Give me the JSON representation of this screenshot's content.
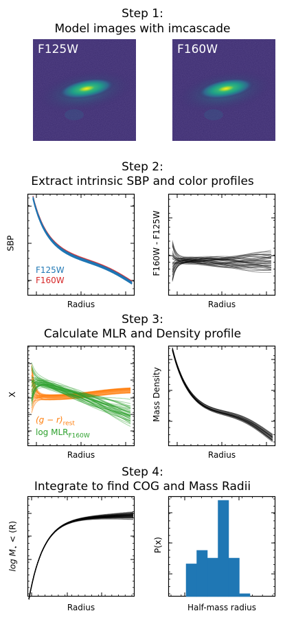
{
  "steps": [
    {
      "title_line1": "Step 1:",
      "title_line2": "Model images with imcascade"
    },
    {
      "title_line1": "Step 2:",
      "title_line2": "Extract intrinsic SBP and color profiles"
    },
    {
      "title_line1": "Step 3:",
      "title_line2": "Calculate MLR and Density profile"
    },
    {
      "title_line1": "Step 4:",
      "title_line2": "Integrate to find COG and Mass Radii"
    }
  ],
  "images": [
    {
      "label": "F125W"
    },
    {
      "label": "F160W"
    }
  ],
  "colors": {
    "blue": "#1f77b4",
    "red": "#d62728",
    "orange": "#ff7f0e",
    "green": "#2ca02c",
    "black": "#000000",
    "image_bg": "#3d2a6e"
  },
  "panels": {
    "sbp": {
      "xlabel": "Radius",
      "ylabel": "SBP",
      "legend": [
        "F125W",
        "F160W"
      ]
    },
    "color": {
      "xlabel": "Radius",
      "ylabel": "F160W - F125W"
    },
    "mlr": {
      "xlabel": "Radius",
      "ylabel": "X",
      "legend_line1": "(g − r)",
      "legend_line1_sub": "rest",
      "legend_line2": "log MLR",
      "legend_line2_sub": "F160W"
    },
    "density": {
      "xlabel": "Radius",
      "ylabel": "Mass Density"
    },
    "cog": {
      "xlabel": "Radius",
      "ylabel": "log M",
      "ylabel_sub": "⋆",
      "ylabel_tail": " < (R)"
    },
    "hist": {
      "xlabel": "Half-mass radius",
      "ylabel": "P(x)"
    }
  },
  "chart_data": [
    {
      "type": "line",
      "title": "",
      "xlabel": "Radius",
      "ylabel": "SBP",
      "series": [
        {
          "name": "F125W"
        },
        {
          "name": "F160W"
        }
      ]
    },
    {
      "type": "line",
      "title": "",
      "xlabel": "Radius",
      "ylabel": "F160W - F125W"
    },
    {
      "type": "line",
      "title": "",
      "xlabel": "Radius",
      "ylabel": "X",
      "series": [
        {
          "name": "(g − r)rest"
        },
        {
          "name": "log MLRF160W"
        }
      ]
    },
    {
      "type": "line",
      "title": "",
      "xlabel": "Radius",
      "ylabel": "Mass Density"
    },
    {
      "type": "line",
      "title": "",
      "xlabel": "Radius",
      "ylabel": "log M⋆ < (R)"
    },
    {
      "type": "bar",
      "title": "",
      "xlabel": "Half-mass radius",
      "ylabel": "P(x)",
      "values": [
        0.34,
        0.48,
        0.4,
        1.0,
        0.4,
        0.03
      ]
    }
  ]
}
